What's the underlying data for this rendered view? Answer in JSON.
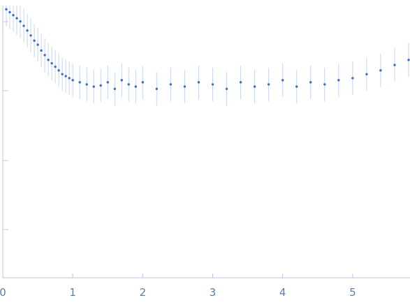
{
  "chart_data": {
    "type": "scatter",
    "title": "",
    "xlabel": "",
    "ylabel": "",
    "x_ticks": [
      "0",
      "1",
      "2",
      "3",
      "4",
      "5"
    ],
    "x_tick_values": [
      0,
      1,
      2,
      3,
      4,
      5
    ],
    "xlim": [
      0,
      5.82
    ],
    "y_scale": "log",
    "grid": false,
    "legend": "none",
    "colors": {
      "positive": "#3a6fc4",
      "negative": "#e0303a",
      "error_band": "#bcd0ea",
      "axis_text": "#5b7fa6"
    },
    "series": [
      {
        "color": "#3a6fc4",
        "points": [
          [
            0.05,
            0.96
          ],
          [
            0.1,
            0.93
          ],
          [
            0.15,
            0.9
          ],
          [
            0.2,
            0.87
          ],
          [
            0.25,
            0.84
          ],
          [
            0.3,
            0.8
          ],
          [
            0.35,
            0.76
          ],
          [
            0.4,
            0.72
          ],
          [
            0.45,
            0.68
          ],
          [
            0.5,
            0.65
          ],
          [
            0.55,
            0.61
          ],
          [
            0.6,
            0.58
          ],
          [
            0.65,
            0.55
          ],
          [
            0.7,
            0.53
          ],
          [
            0.75,
            0.51
          ],
          [
            0.8,
            0.49
          ],
          [
            0.85,
            0.47
          ],
          [
            0.9,
            0.46
          ],
          [
            0.95,
            0.45
          ],
          [
            1.0,
            0.44
          ],
          [
            1.1,
            0.43
          ],
          [
            1.2,
            0.42
          ],
          [
            1.3,
            0.41
          ],
          [
            1.4,
            0.415
          ],
          [
            1.5,
            0.43
          ],
          [
            1.6,
            0.4
          ],
          [
            1.7,
            0.44
          ],
          [
            1.8,
            0.42
          ],
          [
            1.9,
            0.41
          ],
          [
            2.0,
            0.43
          ],
          [
            2.2,
            0.4
          ],
          [
            2.4,
            0.42
          ],
          [
            2.6,
            0.41
          ],
          [
            2.8,
            0.43
          ],
          [
            3.0,
            0.42
          ],
          [
            3.2,
            0.4
          ],
          [
            3.4,
            0.43
          ],
          [
            3.6,
            0.41
          ],
          [
            3.8,
            0.42
          ],
          [
            4.0,
            0.44
          ],
          [
            4.2,
            0.41
          ],
          [
            4.4,
            0.43
          ],
          [
            4.6,
            0.42
          ],
          [
            4.8,
            0.44
          ],
          [
            5.0,
            0.45
          ],
          [
            5.2,
            0.47
          ],
          [
            5.4,
            0.49
          ],
          [
            5.6,
            0.52
          ],
          [
            5.8,
            0.55
          ]
        ]
      }
    ]
  }
}
